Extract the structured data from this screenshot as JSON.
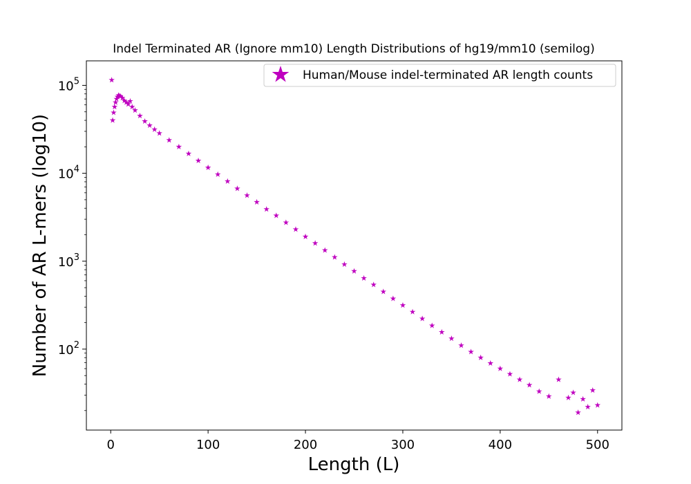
{
  "chart_data": {
    "type": "scatter",
    "title": "Indel Terminated AR (Ignore mm10) Length Distributions of hg19/mm10 (semilog)",
    "xlabel": "Length (L)",
    "ylabel": "Number of AR L-mers (log10)",
    "y_scale": "log",
    "xlim": [
      -25,
      525
    ],
    "ylim": [
      12,
      190000
    ],
    "x_ticks": [
      0,
      100,
      200,
      300,
      400,
      500
    ],
    "y_ticks": [
      100,
      1000,
      10000,
      100000
    ],
    "y_tick_labels": [
      {
        "base": "10",
        "exp": "2"
      },
      {
        "base": "10",
        "exp": "3"
      },
      {
        "base": "10",
        "exp": "4"
      },
      {
        "base": "10",
        "exp": "5"
      }
    ],
    "grid": false,
    "legend_position": "top-right",
    "marker": "star",
    "series": [
      {
        "name": "Human/Mouse indel-terminated AR length counts",
        "color": "#bf00bf",
        "x": [
          1,
          2,
          3,
          4,
          5,
          6,
          7,
          8,
          9,
          10,
          12,
          14,
          16,
          18,
          20,
          22,
          25,
          30,
          35,
          40,
          45,
          50,
          60,
          70,
          80,
          90,
          100,
          110,
          120,
          130,
          140,
          150,
          160,
          170,
          180,
          190,
          200,
          210,
          220,
          230,
          240,
          250,
          260,
          270,
          280,
          290,
          300,
          310,
          320,
          330,
          340,
          350,
          360,
          370,
          380,
          390,
          400,
          410,
          420,
          430,
          440,
          450,
          460,
          470,
          475,
          480,
          485,
          490,
          495,
          500
        ],
        "y": [
          115000,
          40000,
          49000,
          57000,
          64000,
          70000,
          74000,
          77000,
          76000,
          75000,
          72000,
          67000,
          64000,
          61000,
          66000,
          57000,
          52000,
          45000,
          39000,
          35000,
          31500,
          28500,
          23800,
          20000,
          16700,
          13900,
          11600,
          9700,
          8100,
          6700,
          5600,
          4700,
          3900,
          3300,
          2750,
          2300,
          1900,
          1600,
          1330,
          1110,
          920,
          770,
          640,
          540,
          450,
          375,
          315,
          265,
          222,
          185,
          156,
          132,
          110,
          93,
          80,
          69,
          60,
          52,
          45,
          39,
          33,
          29,
          45,
          28,
          32,
          19,
          27,
          22,
          34,
          23
        ]
      }
    ]
  }
}
